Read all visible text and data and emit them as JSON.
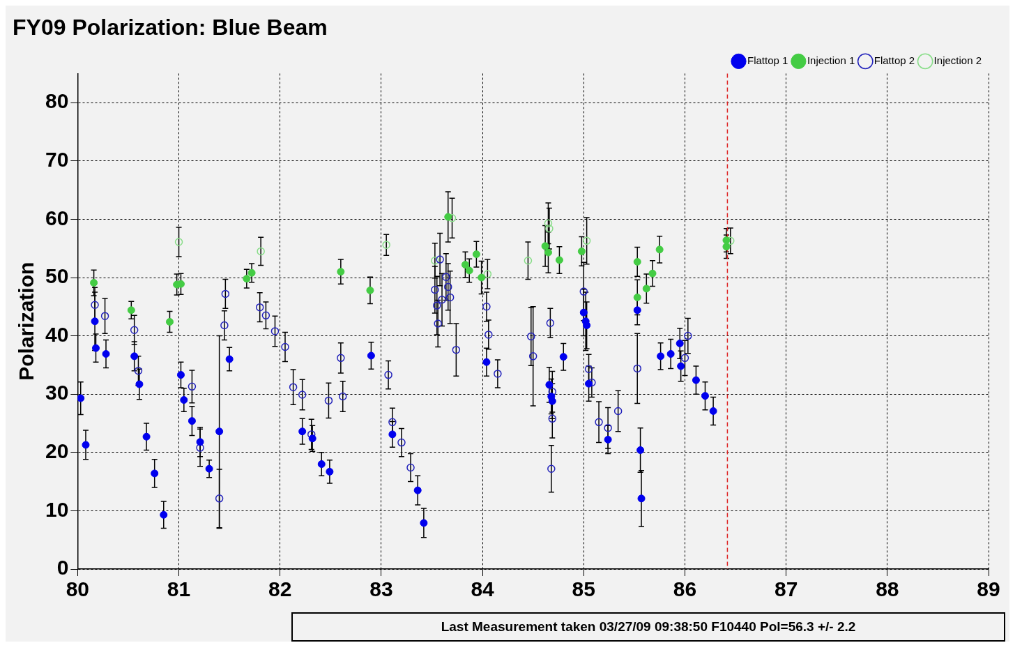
{
  "chart_data": {
    "type": "scatter",
    "title": "FY09 Polarization: Blue Beam",
    "ylabel": "Polarization",
    "xlim": [
      80,
      89
    ],
    "xticks": [
      80,
      81,
      82,
      83,
      84,
      85,
      86,
      87,
      88,
      89
    ],
    "ylim": [
      0,
      85
    ],
    "yticks": [
      0,
      10,
      20,
      30,
      40,
      50,
      60,
      70,
      80
    ],
    "grid": true,
    "legend": "top right",
    "marker": "circle",
    "series": [
      {
        "name": "Flattop 1",
        "color": "#0000ee",
        "x": [
          80.03,
          80.08,
          80.17,
          80.18,
          80.28,
          80.56,
          80.61,
          80.68,
          80.76,
          80.85,
          81.02,
          81.05,
          81.13,
          81.21,
          81.3,
          81.4,
          81.5,
          82.22,
          82.32,
          82.41,
          82.49,
          82.9,
          83.11,
          83.36,
          83.42,
          84.04,
          84.66,
          84.68,
          84.69,
          84.8,
          85.0,
          85.02,
          85.03,
          85.05,
          85.24,
          85.53,
          85.56,
          85.57,
          85.76,
          85.86,
          85.95,
          85.96,
          86.11,
          86.2,
          86.28
        ],
        "values": [
          29.3,
          21.3,
          42.5,
          37.9,
          36.9,
          36.5,
          31.7,
          22.7,
          16.4,
          9.3,
          33.3,
          29.0,
          25.4,
          21.8,
          17.2,
          23.6,
          36.0,
          23.6,
          22.4,
          18.0,
          16.7,
          36.6,
          23.1,
          13.5,
          7.9,
          35.5,
          31.6,
          29.6,
          28.8,
          36.4,
          44.0,
          42.5,
          41.8,
          31.8,
          22.2,
          44.4,
          20.4,
          12.1,
          36.5,
          36.9,
          38.7,
          34.8,
          32.4,
          29.7,
          27.1
        ],
        "errors": [
          2.8,
          2.5,
          5,
          2.4,
          2.4,
          2.5,
          2.6,
          2.3,
          2.4,
          2.3,
          2.2,
          2.0,
          2.5,
          2.5,
          1.5,
          [
            7,
            40
          ],
          2,
          2.2,
          2.2,
          2,
          2,
          2.3,
          2.2,
          2.5,
          2.5,
          2.4,
          3,
          3,
          3,
          2.3,
          4,
          5,
          4,
          3,
          2.4,
          2.5,
          3.8,
          4.8,
          2.3,
          2.5,
          2.6,
          2.6,
          2.4,
          2.4,
          2.4
        ]
      },
      {
        "name": "Injection 1",
        "color": "#44cc44",
        "x": [
          80.16,
          80.53,
          80.91,
          80.98,
          81.02,
          81.67,
          81.72,
          82.6,
          82.89,
          83.66,
          83.83,
          83.87,
          83.94,
          83.99,
          84.62,
          84.65,
          84.76,
          84.98,
          85.53,
          85.53,
          85.62,
          85.68,
          85.75,
          86.41,
          86.41
        ],
        "values": [
          49.1,
          44.4,
          42.4,
          48.8,
          48.9,
          49.8,
          50.8,
          51.0,
          47.8,
          60.4,
          52.2,
          51.2,
          54.0,
          50.0,
          55.4,
          54.3,
          53.0,
          54.5,
          52.7,
          46.6,
          48.1,
          50.7,
          54.8,
          56.4,
          55.3
        ],
        "errors": [
          2.2,
          1.5,
          1.8,
          1.8,
          1.8,
          1.6,
          1.6,
          2.1,
          2.3,
          4.3,
          2.2,
          2,
          2.2,
          2.8,
          3.5,
          3.5,
          2.3,
          2.5,
          2.5,
          3,
          2.5,
          2.2,
          2.3,
          2,
          2
        ]
      },
      {
        "name": "Flattop 2",
        "color": "#2222bb",
        "x": [
          80.17,
          80.27,
          80.56,
          80.6,
          81.13,
          81.21,
          81.4,
          81.45,
          81.46,
          81.8,
          81.86,
          81.95,
          82.05,
          82.13,
          82.22,
          82.31,
          82.48,
          82.6,
          82.62,
          83.07,
          83.11,
          83.2,
          83.29,
          83.53,
          83.55,
          83.56,
          83.58,
          83.6,
          83.64,
          83.66,
          83.68,
          83.74,
          84.04,
          84.06,
          84.15,
          84.48,
          84.5,
          84.67,
          84.69,
          84.69,
          84.68,
          85.0,
          85.05,
          85.08,
          85.15,
          85.24,
          85.34,
          85.53,
          86.0,
          86.03
        ],
        "values": [
          45.3,
          43.4,
          41.0,
          34.0,
          31.3,
          20.8,
          12.1,
          41.8,
          47.2,
          44.9,
          43.5,
          40.8,
          38.1,
          31.2,
          29.9,
          23.1,
          28.9,
          36.2,
          29.6,
          33.3,
          25.2,
          21.7,
          17.4,
          47.9,
          45.2,
          42.1,
          53.1,
          46.2,
          50.1,
          48.4,
          46.6,
          37.6,
          45.0,
          40.2,
          33.5,
          39.9,
          36.5,
          42.2,
          30.4,
          25.8,
          17.2,
          47.6,
          34.3,
          32.0,
          25.2,
          24.2,
          27.1,
          34.4,
          36.2,
          40.0
        ],
        "errors": [
          3,
          3,
          2.5,
          2.5,
          2.8,
          3.2,
          5,
          2.5,
          2.5,
          2.5,
          2.3,
          2.6,
          2.5,
          3,
          2.6,
          2.6,
          3,
          2.6,
          2.6,
          2.4,
          2.4,
          2.4,
          2.4,
          4,
          5,
          4,
          4.5,
          4.5,
          4,
          4,
          4.5,
          4.5,
          2.5,
          2.5,
          2.4,
          5,
          8.5,
          2.5,
          3.5,
          3.3,
          4,
          5,
          2.5,
          2.5,
          3.5,
          3.5,
          3.5,
          6,
          3,
          3
        ]
      },
      {
        "name": "Injection 2",
        "color": "#88dd88",
        "x": [
          81.0,
          81.81,
          83.05,
          83.53,
          83.7,
          84.05,
          84.45,
          84.65,
          84.66,
          85.03,
          86.45
        ],
        "values": [
          56.1,
          54.5,
          55.6,
          52.9,
          60.2,
          50.6,
          52.9,
          59.3,
          58.4,
          56.3,
          56.3
        ],
        "errors": [
          2.5,
          2.4,
          1.8,
          3,
          3.4,
          2.5,
          3.2,
          3.5,
          3.5,
          4,
          2.2
        ]
      }
    ],
    "ref_lines": [
      {
        "axis": "x",
        "value": 86.42,
        "color": "#dd2222",
        "line_style": "dashed"
      }
    ],
    "annotations": [
      "Last Measurement taken 03/27/09 09:38:50 F10440 Pol=56.3 +/- 2.2"
    ]
  }
}
